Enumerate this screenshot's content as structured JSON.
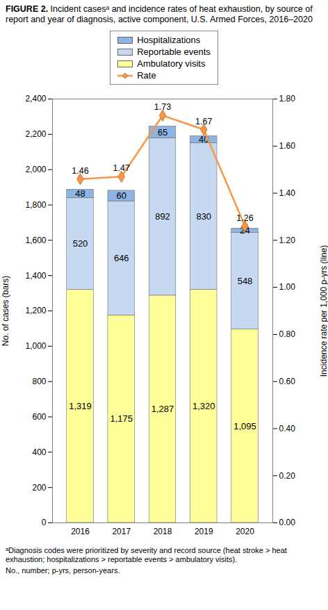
{
  "chart_data": {
    "type": "bar",
    "title": "FIGURE 2. Incident casesᵃ and incidence rates of heat exhaustion, by source of report and year of diagnosis, active component, U.S. Armed Forces, 2016–2020",
    "categories": [
      "2016",
      "2017",
      "2018",
      "2019",
      "2020"
    ],
    "series": [
      {
        "name": "Hospitalizations",
        "color": "#8eb4e3",
        "values": [
          48,
          60,
          65,
          40,
          24
        ]
      },
      {
        "name": "Reportable events",
        "color": "#c6d9f1",
        "values": [
          520,
          646,
          892,
          830,
          548
        ]
      },
      {
        "name": "Ambulatory visits",
        "color": "#ffff99",
        "values": [
          1319,
          1175,
          1287,
          1320,
          1095
        ],
        "value_labels": [
          "1,319",
          "1,175",
          "1,287",
          "1,320",
          "1,095"
        ]
      },
      {
        "name": "Rate",
        "type": "line",
        "marker": "diamond",
        "axis": "y2",
        "color": "#f79646",
        "values": [
          1.46,
          1.47,
          1.73,
          1.67,
          1.26
        ]
      }
    ],
    "stacked": true,
    "data_labels": true,
    "legend": "top",
    "grid": false,
    "y_label": "No. of cases (bars)",
    "y2_label": "Incidence rate per 1,000 p-yrs (line)",
    "ylim": [
      0,
      2400
    ],
    "yticks": [
      0,
      200,
      400,
      600,
      800,
      {
        "value": 1000,
        "label": "1,000"
      },
      {
        "value": 1200,
        "label": "1,200"
      },
      {
        "value": 1400,
        "label": "1,400"
      },
      {
        "value": 1600,
        "label": "1,600"
      },
      {
        "value": 1800,
        "label": "1,800"
      },
      {
        "value": 2000,
        "label": "2,000"
      },
      {
        "value": 2200,
        "label": "2,200"
      },
      {
        "value": 2400,
        "label": "2,400"
      }
    ],
    "y2lim": [
      0,
      1.8
    ],
    "y2ticks": [
      {
        "value": 0,
        "label": "0.00"
      },
      {
        "value": 0.2,
        "label": "0.20"
      },
      {
        "value": 0.4,
        "label": "0.40"
      },
      {
        "value": 0.6,
        "label": "0.60"
      },
      {
        "value": 0.8,
        "label": "0.80"
      },
      {
        "value": 1.0,
        "label": "1.00"
      },
      {
        "value": 1.2,
        "label": "1.20"
      },
      {
        "value": 1.4,
        "label": "1.40"
      },
      {
        "value": 1.6,
        "label": "1.60"
      },
      {
        "value": 1.8,
        "label": "1.80"
      }
    ],
    "annotations": [
      "ᵃDiagnosis codes were prioritized by severity and record source (heat stroke > heat exhaustion; hospitalizations > reportable events > ambulatory visits).",
      "No., number; p-yrs, person-years."
    ]
  }
}
